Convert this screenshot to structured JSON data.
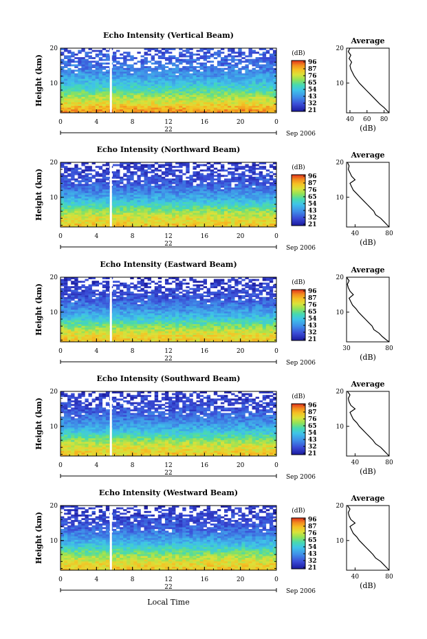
{
  "figure": {
    "x_axis_label": "Local Time",
    "date_label": "Sep 2006",
    "day_label": "22",
    "colorbar_unit": "(dB)",
    "profile_title": "Average",
    "profile_xlabel": "(dB)",
    "height_label": "Height (km)"
  },
  "chart_data": [
    {
      "type": "heatmap",
      "title": "Echo Intensity (Vertical Beam)",
      "ylabel": "Height (km)",
      "xlabel": "Local Time",
      "x_ticks": [
        "0",
        "4",
        "8",
        "12",
        "16",
        "20",
        "0"
      ],
      "xlim": [
        0,
        24
      ],
      "ylim": [
        1.5,
        20
      ],
      "y_ticks": [
        "10",
        "20"
      ],
      "day_label": "22",
      "date_label": "Sep 2006",
      "colorbar": {
        "unit": "(dB)",
        "ticks": [
          "96",
          "87",
          "76",
          "65",
          "54",
          "43",
          "32",
          "21"
        ],
        "range": [
          21,
          96
        ]
      },
      "data_gap_hour": 5.6,
      "echo_profile": {
        "heights_km": [
          2,
          4,
          6,
          8,
          10,
          12,
          14,
          16,
          18,
          20
        ],
        "db": [
          88,
          78,
          70,
          60,
          52,
          45,
          40,
          36,
          34,
          32
        ]
      },
      "average_profile": {
        "title": "Average",
        "xlabel": "(dB)",
        "x_ticks": [
          "40",
          "60",
          "80"
        ],
        "xlim": [
          36,
          86
        ],
        "ylim": [
          1.5,
          20
        ],
        "y_ticks": [
          "10",
          "20"
        ],
        "heights_km": [
          1.5,
          2,
          3,
          4,
          5,
          6,
          7,
          8,
          9,
          10,
          11,
          12,
          13,
          14,
          15,
          16,
          17,
          18,
          19,
          20
        ],
        "db": [
          86,
          84,
          80,
          75,
          71,
          67,
          63,
          59,
          55,
          51,
          48,
          45,
          43,
          41,
          40,
          42,
          39,
          41,
          38,
          40
        ]
      }
    },
    {
      "type": "heatmap",
      "title": "Echo Intensity (Northward Beam)",
      "ylabel": "Height (km)",
      "xlabel": "Local Time",
      "x_ticks": [
        "0",
        "4",
        "8",
        "12",
        "16",
        "20",
        "0"
      ],
      "xlim": [
        0,
        24
      ],
      "ylim": [
        1.5,
        20
      ],
      "y_ticks": [
        "10",
        "20"
      ],
      "day_label": "22",
      "date_label": "Sep 2006",
      "colorbar": {
        "unit": "(dB)",
        "ticks": [
          "96",
          "87",
          "76",
          "65",
          "54",
          "43",
          "32",
          "21"
        ],
        "range": [
          21,
          96
        ]
      },
      "data_gap_hour": 5.6,
      "echo_profile": {
        "heights_km": [
          2,
          4,
          6,
          8,
          10,
          12,
          14,
          16,
          18,
          20
        ],
        "db": [
          80,
          76,
          68,
          57,
          47,
          40,
          34,
          31,
          29,
          27
        ]
      },
      "average_profile": {
        "title": "Average",
        "xlabel": "(dB)",
        "x_ticks": [
          "40",
          "80"
        ],
        "xlim": [
          30,
          80
        ],
        "ylim": [
          1.5,
          20
        ],
        "y_ticks": [
          "10",
          "20"
        ],
        "heights_km": [
          1.5,
          2,
          3,
          4,
          5,
          6,
          7,
          8,
          9,
          10,
          11,
          12,
          13,
          14,
          15,
          16,
          17,
          18,
          19,
          20
        ],
        "db": [
          80,
          78,
          74,
          70,
          64,
          62,
          58,
          54,
          50,
          46,
          42,
          38,
          36,
          34,
          40,
          36,
          34,
          32,
          33,
          31
        ]
      }
    },
    {
      "type": "heatmap",
      "title": "Echo Intensity (Eastward Beam)",
      "ylabel": "Height (km)",
      "xlabel": "Local Time",
      "x_ticks": [
        "0",
        "4",
        "8",
        "12",
        "16",
        "20",
        "0"
      ],
      "xlim": [
        0,
        24
      ],
      "ylim": [
        1.5,
        20
      ],
      "y_ticks": [
        "10",
        "20"
      ],
      "day_label": "22",
      "date_label": "Sep 2006",
      "colorbar": {
        "unit": "(dB)",
        "ticks": [
          "96",
          "87",
          "76",
          "65",
          "54",
          "43",
          "32",
          "21"
        ],
        "range": [
          21,
          96
        ]
      },
      "data_gap_hour": 5.6,
      "echo_profile": {
        "heights_km": [
          2,
          4,
          6,
          8,
          10,
          12,
          14,
          16,
          18,
          20
        ],
        "db": [
          80,
          76,
          66,
          55,
          46,
          39,
          33,
          30,
          28,
          26
        ]
      },
      "average_profile": {
        "title": "Average",
        "xlabel": "(dB)",
        "x_ticks": [
          "30",
          "80"
        ],
        "xlim": [
          30,
          80
        ],
        "ylim": [
          1.5,
          20
        ],
        "y_ticks": [
          "10",
          "20"
        ],
        "heights_km": [
          1.5,
          2,
          3,
          4,
          5,
          6,
          7,
          8,
          9,
          10,
          11,
          12,
          13,
          14,
          15,
          16,
          17,
          18,
          19,
          20
        ],
        "db": [
          80,
          77,
          72,
          68,
          62,
          60,
          56,
          52,
          48,
          44,
          41,
          37,
          35,
          33,
          38,
          34,
          32,
          31,
          33,
          30
        ]
      }
    },
    {
      "type": "heatmap",
      "title": "Echo Intensity (Southward Beam)",
      "ylabel": "Height (km)",
      "xlabel": "Local Time",
      "x_ticks": [
        "0",
        "4",
        "8",
        "12",
        "16",
        "20",
        "0"
      ],
      "xlim": [
        0,
        24
      ],
      "ylim": [
        1.5,
        20
      ],
      "y_ticks": [
        "10",
        "20"
      ],
      "day_label": "22",
      "date_label": "Sep 2006",
      "colorbar": {
        "unit": "(dB)",
        "ticks": [
          "96",
          "87",
          "76",
          "65",
          "54",
          "43",
          "32",
          "21"
        ],
        "range": [
          21,
          96
        ]
      },
      "data_gap_hour": 5.6,
      "echo_profile": {
        "heights_km": [
          2,
          4,
          6,
          8,
          10,
          12,
          14,
          16,
          18,
          20
        ],
        "db": [
          80,
          76,
          67,
          56,
          46,
          40,
          34,
          31,
          29,
          27
        ]
      },
      "average_profile": {
        "title": "Average",
        "xlabel": "(dB)",
        "x_ticks": [
          "40",
          "80"
        ],
        "xlim": [
          30,
          80
        ],
        "ylim": [
          1.5,
          20
        ],
        "y_ticks": [
          "10",
          "20"
        ],
        "heights_km": [
          1.5,
          2,
          3,
          4,
          5,
          6,
          7,
          8,
          9,
          10,
          11,
          12,
          13,
          14,
          15,
          16,
          17,
          18,
          19,
          20
        ],
        "db": [
          80,
          78,
          74,
          70,
          64,
          61,
          57,
          53,
          49,
          45,
          42,
          38,
          36,
          34,
          40,
          35,
          33,
          32,
          34,
          31
        ]
      }
    },
    {
      "type": "heatmap",
      "title": "Echo Intensity (Westward Beam)",
      "ylabel": "Height (km)",
      "xlabel": "Local Time",
      "x_ticks": [
        "0",
        "4",
        "8",
        "12",
        "16",
        "20",
        "0"
      ],
      "xlim": [
        0,
        24
      ],
      "ylim": [
        1.5,
        20
      ],
      "y_ticks": [
        "10",
        "20"
      ],
      "day_label": "22",
      "date_label": "Sep 2006",
      "colorbar": {
        "unit": "(dB)",
        "ticks": [
          "96",
          "87",
          "76",
          "65",
          "54",
          "43",
          "32",
          "21"
        ],
        "range": [
          21,
          96
        ]
      },
      "data_gap_hour": 5.6,
      "echo_profile": {
        "heights_km": [
          2,
          4,
          6,
          8,
          10,
          12,
          14,
          16,
          18,
          20
        ],
        "db": [
          80,
          76,
          67,
          56,
          47,
          40,
          34,
          31,
          29,
          27
        ]
      },
      "average_profile": {
        "title": "Average",
        "xlabel": "(dB)",
        "x_ticks": [
          "40",
          "80"
        ],
        "xlim": [
          30,
          80
        ],
        "ylim": [
          1.5,
          20
        ],
        "y_ticks": [
          "10",
          "20"
        ],
        "heights_km": [
          1.5,
          2,
          3,
          4,
          5,
          6,
          7,
          8,
          9,
          10,
          11,
          12,
          13,
          14,
          15,
          16,
          17,
          18,
          19,
          20
        ],
        "db": [
          80,
          78,
          74,
          70,
          64,
          61,
          57,
          53,
          49,
          45,
          42,
          38,
          36,
          34,
          40,
          35,
          33,
          32,
          34,
          31
        ]
      }
    }
  ]
}
